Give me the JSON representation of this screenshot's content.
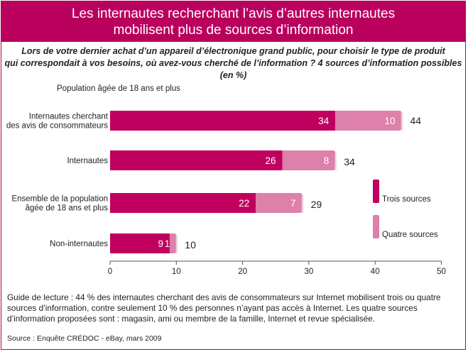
{
  "title": {
    "line1": "Les internautes recherchant l’avis d’autres internautes",
    "line2": "mobilisent plus de sources d’information"
  },
  "subtitle": {
    "line1": "Lors de votre dernier achat d’un appareil d’électronique grand public, pour choisir le type de produit",
    "line2": "qui correspondait à vos besoins, où avez-vous cherché de l’information ? 4 sources d’information possibles (en %)"
  },
  "population_note": "Population âgée de 18 ans et plus",
  "reading_guide": "Guide de lecture : 44 % des internautes cherchant des avis de consommateurs sur Internet mobilisent trois ou quatre sources d’information, contre seulement 10 % des personnes n’ayant pas accès à Internet. Les quatre sources d’information proposées sont : magasin, ami ou membre de la famille, Internet et revue spécialisée.",
  "source": "Source : Enquête CRÉDOC - eBay, mars 2009",
  "colors": {
    "title_band": "#b8005c",
    "trois": "#c0005e",
    "quatre": "#dd80aa"
  },
  "chart_data": {
    "type": "bar",
    "orientation": "horizontal",
    "stacked": true,
    "categories": [
      [
        "Internautes cherchant",
        "des avis de consommateurs"
      ],
      [
        "Internautes"
      ],
      [
        "Ensemble de la population",
        "âgée de 18 ans et plus"
      ],
      [
        "Non-internautes"
      ]
    ],
    "series": [
      {
        "name": "Trois sources",
        "values": [
          34,
          26,
          22,
          9
        ]
      },
      {
        "name": "Quatre sources",
        "values": [
          10,
          8,
          7,
          1
        ]
      }
    ],
    "totals": [
      44,
      34,
      29,
      10
    ],
    "xlim": [
      0,
      50
    ],
    "xticks": [
      0,
      10,
      20,
      30,
      40,
      50
    ],
    "legend": "right"
  }
}
